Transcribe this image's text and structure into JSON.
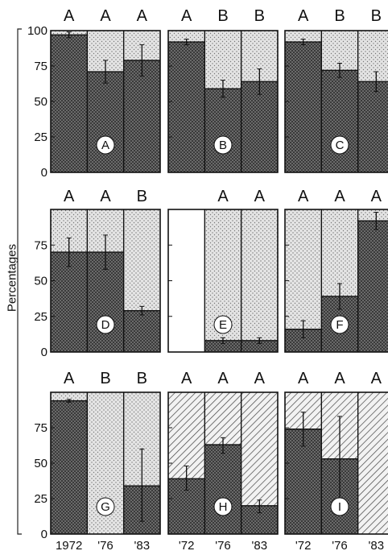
{
  "chart_data": {
    "type": "bar",
    "ylabel": "Percentages",
    "stacked_to_100": true,
    "grid": false,
    "categories": [
      "1972",
      "'76",
      "'83"
    ],
    "x_tick_labels_by_column": [
      [
        "1972",
        "'76",
        "'83"
      ],
      [
        "'72",
        "'76",
        "'83"
      ],
      [
        "'72",
        "'76",
        "'83"
      ]
    ],
    "y_ticks": [
      "100",
      "75",
      "50",
      "25",
      "0"
    ],
    "colors": {
      "dark_fill": "#555555",
      "light_fill": "#dcdcdc",
      "hatched_fill": "#efefef"
    },
    "panels": [
      {
        "panel_label": "A",
        "ylim": [
          0,
          100
        ],
        "y_ticks": [
          "100",
          "75",
          "50",
          "25",
          "0"
        ],
        "letters": [
          "A",
          "A",
          "A"
        ],
        "values": [
          97,
          71,
          79
        ],
        "error_high": [
          99,
          79,
          90
        ],
        "error_low": [
          95,
          63,
          68
        ],
        "complement_fill": "stipple"
      },
      {
        "panel_label": "B",
        "ylim": [
          0,
          100
        ],
        "letters": [
          "A",
          "B",
          "B"
        ],
        "values": [
          92,
          59,
          64
        ],
        "error_high": [
          94,
          65,
          73
        ],
        "error_low": [
          90,
          53,
          55
        ],
        "complement_fill": "stipple"
      },
      {
        "panel_label": "C",
        "ylim": [
          0,
          100
        ],
        "letters": [
          "A",
          "B",
          "B"
        ],
        "values": [
          92,
          72,
          64
        ],
        "error_high": [
          94,
          77,
          71
        ],
        "error_low": [
          90,
          67,
          57
        ],
        "complement_fill": "stipple"
      },
      {
        "panel_label": "D",
        "ylim": [
          0,
          100
        ],
        "y_ticks": [
          "75",
          "50",
          "25",
          "0"
        ],
        "letters": [
          "A",
          "A",
          "B"
        ],
        "values": [
          70,
          70,
          29
        ],
        "error_high": [
          80,
          82,
          32
        ],
        "error_low": [
          60,
          58,
          26
        ],
        "complement_fill": "stipple"
      },
      {
        "panel_label": "E",
        "ylim": [
          0,
          100
        ],
        "letters": [
          "",
          "A",
          "A"
        ],
        "values": [
          null,
          8,
          8
        ],
        "error_high": [
          null,
          10,
          10
        ],
        "error_low": [
          null,
          6,
          6
        ],
        "complement_fill": "stipple"
      },
      {
        "panel_label": "F",
        "ylim": [
          0,
          100
        ],
        "letters": [
          "A",
          "A",
          "A"
        ],
        "values": [
          16,
          39,
          92
        ],
        "error_high": [
          22,
          48,
          98
        ],
        "error_low": [
          10,
          30,
          86
        ],
        "complement_fill": "stipple"
      },
      {
        "panel_label": "G",
        "ylim": [
          0,
          100
        ],
        "y_ticks": [
          "75",
          "50",
          "25",
          "0"
        ],
        "letters": [
          "A",
          "B",
          "B"
        ],
        "values": [
          94,
          0,
          34
        ],
        "error_high": [
          95,
          0,
          60
        ],
        "error_low": [
          93,
          0,
          9
        ],
        "complement_fill": "stipple"
      },
      {
        "panel_label": "H",
        "ylim": [
          0,
          100
        ],
        "letters": [
          "A",
          "A",
          "A"
        ],
        "values": [
          39,
          63,
          20
        ],
        "error_high": [
          48,
          68,
          24
        ],
        "error_low": [
          31,
          57,
          15
        ],
        "complement_fill": "hatch"
      },
      {
        "panel_label": "I",
        "ylim": [
          0,
          100
        ],
        "letters": [
          "A",
          "A",
          "A"
        ],
        "values": [
          74,
          53,
          0
        ],
        "error_high": [
          86,
          83,
          0
        ],
        "error_low": [
          62,
          23,
          0
        ],
        "complement_fill": "hatch"
      }
    ]
  }
}
